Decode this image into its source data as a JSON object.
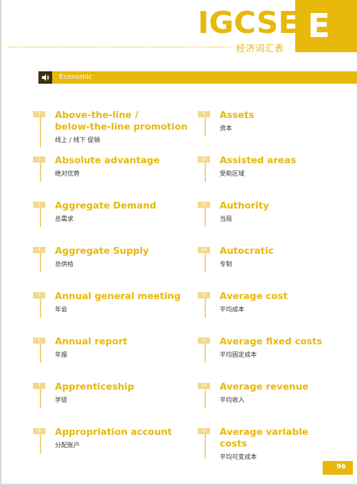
{
  "header": {
    "title": "IGCSE",
    "letter": "E",
    "subtitle": "经济词汇表"
  },
  "section": {
    "label": "Economic",
    "icon": "speaker-icon"
  },
  "colors": {
    "accent": "#e8b80a",
    "light_accent": "#f2d98a",
    "text": "#333333"
  },
  "entries": [
    {
      "num": "1",
      "term": "Above-the-line /\nbelow-the-line promotion",
      "translation": "线上 / 线下 促销"
    },
    {
      "num": "2",
      "term": "Absolute advantage",
      "translation": "绝对优势"
    },
    {
      "num": "3",
      "term": "Aggregate Demand",
      "translation": "总需求"
    },
    {
      "num": "4",
      "term": "Aggregate Supply",
      "translation": "总供给"
    },
    {
      "num": "5",
      "term": "Annual general meeting",
      "translation": "年会"
    },
    {
      "num": "6",
      "term": "Annual report",
      "translation": "年报"
    },
    {
      "num": "7",
      "term": "Apprenticeship",
      "translation": "学徒"
    },
    {
      "num": "8",
      "term": "Appropriation account",
      "translation": "分配账户"
    },
    {
      "num": "9",
      "term": "Assets",
      "translation": "资本"
    },
    {
      "num": "10",
      "term": "Assisted areas",
      "translation": "受助区域"
    },
    {
      "num": "11",
      "term": "Authority",
      "translation": "当局"
    },
    {
      "num": "12",
      "term": "Autocratic",
      "translation": "专制"
    },
    {
      "num": "13",
      "term": "Average cost",
      "translation": "平均成本"
    },
    {
      "num": "14",
      "term": "Average fixed costs",
      "translation": "平均固定成本"
    },
    {
      "num": "15",
      "term": "Average revenue",
      "translation": "平均收入"
    },
    {
      "num": "16",
      "term": "Average variable\ncosts",
      "translation": "平均可变成本"
    }
  ],
  "page_number": "96"
}
